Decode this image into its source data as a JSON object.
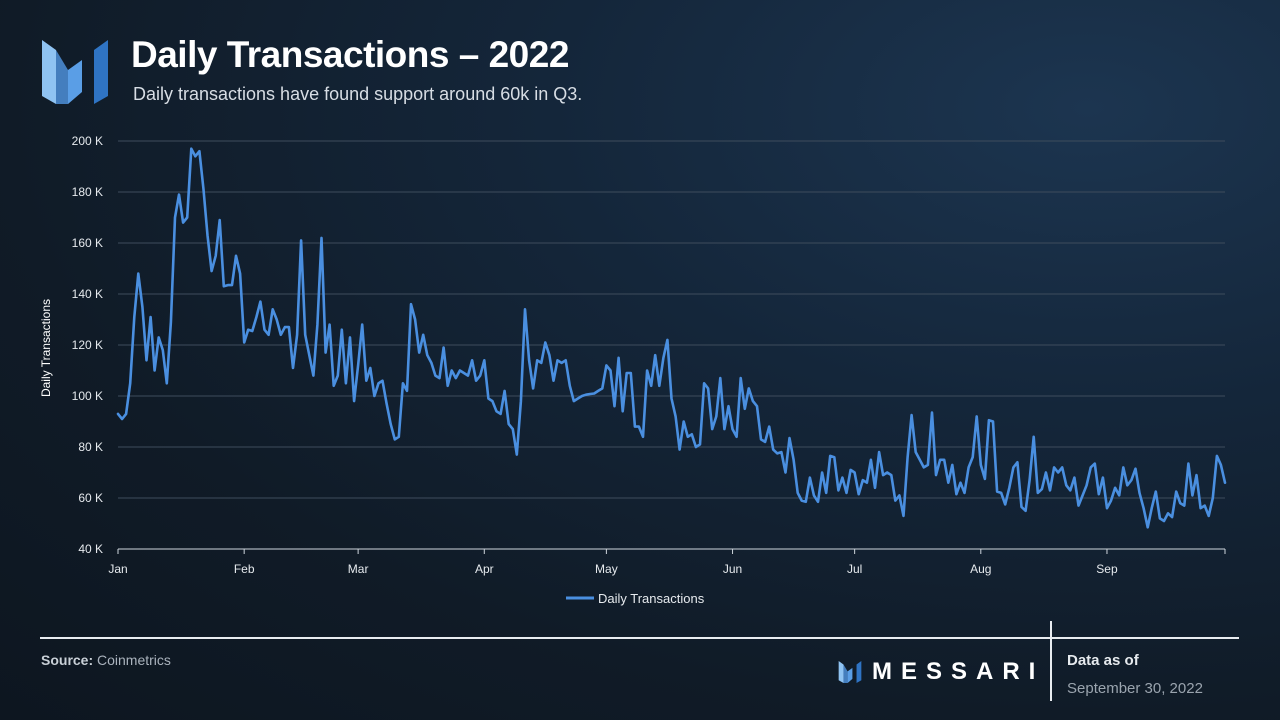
{
  "header": {
    "title": "Daily Transactions – 2022",
    "subtitle": "Daily transactions have found support around 60k in Q3."
  },
  "footer": {
    "source_label": "Source:",
    "source_value": "Coinmetrics",
    "brand": "MESSARI",
    "as_of_label": "Data as of",
    "as_of_date": "September 30, 2022"
  },
  "colors": {
    "line": "#4a8fe0",
    "grid": "#3e4c5c",
    "axis": "#cfd6dd",
    "logo_light": "#8fc3f2",
    "logo_dark": "#2f74c4"
  },
  "chart_data": {
    "type": "line",
    "title": "Daily Transactions – 2022",
    "xlabel": "",
    "ylabel": "Daily Transactions",
    "ylim": [
      40000,
      200000
    ],
    "yticks": [
      40000,
      60000,
      80000,
      100000,
      120000,
      140000,
      160000,
      180000,
      200000
    ],
    "ytick_labels": [
      "40 K",
      "60 K",
      "80 K",
      "100 K",
      "120 K",
      "140 K",
      "160 K",
      "180 K",
      "200 K"
    ],
    "xlim_days": [
      0,
      272
    ],
    "x_ticks": [
      {
        "label": "Jan",
        "day": 0
      },
      {
        "label": "Feb",
        "day": 31
      },
      {
        "label": "Mar",
        "day": 59
      },
      {
        "label": "Apr",
        "day": 90
      },
      {
        "label": "May",
        "day": 120
      },
      {
        "label": "Jun",
        "day": 151
      },
      {
        "label": "Jul",
        "day": 181
      },
      {
        "label": "Aug",
        "day": 212
      },
      {
        "label": "Sep",
        "day": 243
      }
    ],
    "grid": true,
    "legend": "bottom-center",
    "series": [
      {
        "name": "Daily Transactions",
        "x_unit": "day of year 2022 (0 = Jan 1)",
        "x_start": 0,
        "values": [
          93000,
          91000,
          93000,
          105000,
          131000,
          148000,
          135000,
          114000,
          131000,
          110000,
          123000,
          118000,
          105000,
          129000,
          170000,
          179000,
          168000,
          170000,
          197000,
          194000,
          196000,
          181000,
          163000,
          149000,
          155000,
          169000,
          143000,
          143500,
          143500,
          155000,
          148000,
          121000,
          126000,
          125500,
          131000,
          137000,
          126000,
          124000,
          134000,
          130000,
          124000,
          127000,
          127000,
          111000,
          124000,
          161000,
          124000,
          116000,
          108000,
          128000,
          162000,
          117000,
          128000,
          104000,
          108000,
          126000,
          105000,
          123000,
          98000,
          112000,
          128000,
          106000,
          111000,
          100000,
          105000,
          106000,
          97000,
          89000,
          83000,
          84000,
          105000,
          102000,
          136000,
          130000,
          117000,
          124000,
          116000,
          113000,
          108000,
          107000,
          119000,
          104000,
          110000,
          107000,
          110000,
          109000,
          108000,
          114000,
          106000,
          108000,
          114000,
          99000,
          98000,
          94000,
          93000,
          102000,
          89000,
          87000,
          77000,
          98000,
          134000,
          114000,
          103000,
          114000,
          113000,
          121000,
          116000,
          106000,
          114000,
          113000,
          114000,
          104000,
          98000,
          99000,
          100000,
          100500,
          100800,
          101000,
          102000,
          103000,
          112000,
          110000,
          96000,
          115000,
          94000,
          109000,
          109000,
          88000,
          88000,
          84000,
          110000,
          104000,
          116000,
          104000,
          115000,
          122000,
          99000,
          92000,
          79000,
          90000,
          84000,
          85000,
          80000,
          81000,
          105000,
          103000,
          87000,
          92000,
          107000,
          87000,
          96000,
          87000,
          84000,
          107000,
          95000,
          103000,
          98000,
          96000,
          83000,
          82000,
          88000,
          79000,
          77500.0,
          78000,
          70000,
          83500,
          75000,
          62000,
          59000,
          58500,
          68000,
          61000,
          58500,
          70000,
          62000,
          76500,
          76000,
          63000,
          68000,
          62000,
          71000,
          70000,
          61500,
          67000,
          66000,
          75000,
          64000,
          78000,
          69000,
          70000,
          69000,
          59000,
          61000,
          53000,
          76000,
          92500,
          78000,
          75000,
          72000,
          73000,
          93500,
          69000,
          75000,
          75000,
          66000,
          73000,
          61500,
          66000,
          62000,
          72000,
          76000,
          92000,
          73000,
          67500,
          90500,
          90000,
          62500,
          62000,
          57500,
          64000,
          72000,
          74000,
          56500,
          55000,
          67000,
          84000,
          62000,
          63500,
          70000,
          63000,
          72000,
          70000,
          72000,
          65000,
          63000,
          68000,
          57000,
          61000,
          65000,
          72000,
          73500,
          61500,
          68000,
          56000,
          59000,
          64000,
          61000,
          72000,
          65000,
          67000,
          71500,
          62000,
          56000,
          48500,
          56000,
          62500,
          52000,
          51000,
          54000,
          52500,
          62500,
          58000,
          57000,
          73500,
          61000,
          69000,
          56000,
          57000,
          53000,
          60000,
          76500,
          73000,
          66000
        ]
      }
    ]
  }
}
